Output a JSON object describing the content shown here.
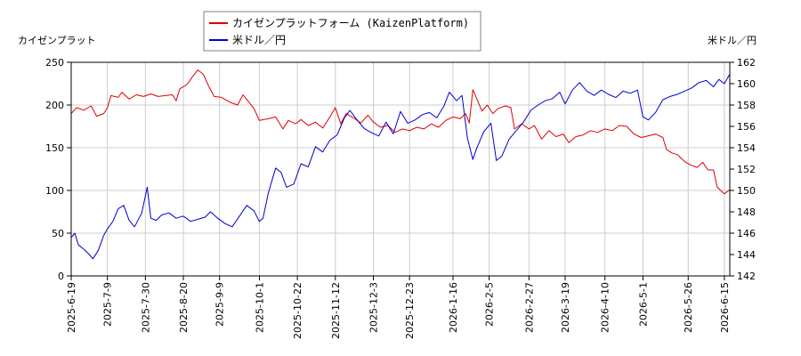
{
  "chart_data": {
    "type": "line",
    "left_axis_title": "カイゼンプラット",
    "right_axis_title": "米ドル／円",
    "legend": {
      "position": "top-center",
      "entries": [
        {
          "label": "カイゼンプラットフォーム (KaizenPlatform)",
          "color": "#dd0000"
        },
        {
          "label": "米ドル／円",
          "color": "#0000cc"
        }
      ]
    },
    "y_left": {
      "min": 0,
      "max": 250,
      "ticks": [
        0,
        50,
        100,
        150,
        200,
        250
      ],
      "tick_color": "#cc0000"
    },
    "y_right": {
      "min": 142,
      "max": 162,
      "ticks": [
        142,
        144,
        146,
        148,
        150,
        152,
        154,
        156,
        158,
        160,
        162
      ],
      "tick_color": "#0000cc"
    },
    "x_range": [
      "2025-06-19",
      "2026-06-18"
    ],
    "x_ticks": [
      "2025-6-19",
      "2025-7-9",
      "2025-7-30",
      "2025-8-20",
      "2025-9-9",
      "2025-10-1",
      "2025-10-22",
      "2025-11-12",
      "2025-12-3",
      "2025-12-23",
      "2026-1-16",
      "2026-2-5",
      "2026-2-27",
      "2026-3-19",
      "2026-4-10",
      "2026-5-1",
      "2026-5-26",
      "2026-6-15"
    ],
    "grid": true,
    "series": [
      {
        "name": "カイゼンプラットフォーム (KaizenPlatform)",
        "color": "#dd0000",
        "axis": "left",
        "points": [
          [
            "2025-06-19",
            190
          ],
          [
            "2025-06-22",
            197
          ],
          [
            "2025-06-26",
            194
          ],
          [
            "2025-06-30",
            199
          ],
          [
            "2025-07-03",
            187
          ],
          [
            "2025-07-07",
            190
          ],
          [
            "2025-07-09",
            197
          ],
          [
            "2025-07-11",
            211
          ],
          [
            "2025-07-15",
            209
          ],
          [
            "2025-07-17",
            215
          ],
          [
            "2025-07-21",
            207
          ],
          [
            "2025-07-25",
            212
          ],
          [
            "2025-07-29",
            210
          ],
          [
            "2025-08-02",
            213
          ],
          [
            "2025-08-06",
            210
          ],
          [
            "2025-08-10",
            211
          ],
          [
            "2025-08-14",
            212
          ],
          [
            "2025-08-16",
            205
          ],
          [
            "2025-08-18",
            219
          ],
          [
            "2025-08-22",
            224
          ],
          [
            "2025-08-25",
            233
          ],
          [
            "2025-08-28",
            241
          ],
          [
            "2025-08-31",
            236
          ],
          [
            "2025-09-03",
            222
          ],
          [
            "2025-09-06",
            210
          ],
          [
            "2025-09-10",
            209
          ],
          [
            "2025-09-15",
            203
          ],
          [
            "2025-09-19",
            200
          ],
          [
            "2025-09-22",
            212
          ],
          [
            "2025-09-25",
            204
          ],
          [
            "2025-09-28",
            196
          ],
          [
            "2025-10-01",
            182
          ],
          [
            "2025-10-06",
            184
          ],
          [
            "2025-10-10",
            186
          ],
          [
            "2025-10-14",
            172
          ],
          [
            "2025-10-17",
            182
          ],
          [
            "2025-10-21",
            178
          ],
          [
            "2025-10-24",
            183
          ],
          [
            "2025-10-28",
            176
          ],
          [
            "2025-11-01",
            180
          ],
          [
            "2025-11-05",
            173
          ],
          [
            "2025-11-09",
            186
          ],
          [
            "2025-11-12",
            197
          ],
          [
            "2025-11-15",
            178
          ],
          [
            "2025-11-18",
            190
          ],
          [
            "2025-11-22",
            185
          ],
          [
            "2025-11-26",
            179
          ],
          [
            "2025-11-30",
            188
          ],
          [
            "2025-12-03",
            180
          ],
          [
            "2025-12-07",
            174
          ],
          [
            "2025-12-11",
            176
          ],
          [
            "2025-12-15",
            168
          ],
          [
            "2025-12-19",
            172
          ],
          [
            "2025-12-23",
            170
          ],
          [
            "2025-12-27",
            174
          ],
          [
            "2025-12-31",
            172
          ],
          [
            "2026-01-04",
            178
          ],
          [
            "2026-01-08",
            174
          ],
          [
            "2026-01-12",
            182
          ],
          [
            "2026-01-16",
            186
          ],
          [
            "2026-01-20",
            184
          ],
          [
            "2026-01-23",
            190
          ],
          [
            "2026-01-25",
            179
          ],
          [
            "2026-01-27",
            218
          ],
          [
            "2026-01-29",
            208
          ],
          [
            "2026-02-01",
            193
          ],
          [
            "2026-02-04",
            200
          ],
          [
            "2026-02-07",
            190
          ],
          [
            "2026-02-10",
            196
          ],
          [
            "2026-02-14",
            199
          ],
          [
            "2026-02-17",
            197
          ],
          [
            "2026-02-19",
            172
          ],
          [
            "2026-02-23",
            178
          ],
          [
            "2026-02-27",
            172
          ],
          [
            "2026-03-02",
            176
          ],
          [
            "2026-03-06",
            160
          ],
          [
            "2026-03-10",
            170
          ],
          [
            "2026-03-14",
            163
          ],
          [
            "2026-03-18",
            166
          ],
          [
            "2026-03-21",
            156
          ],
          [
            "2026-03-25",
            163
          ],
          [
            "2026-03-29",
            165
          ],
          [
            "2026-04-02",
            170
          ],
          [
            "2026-04-06",
            168
          ],
          [
            "2026-04-10",
            172
          ],
          [
            "2026-04-14",
            170
          ],
          [
            "2026-04-18",
            176
          ],
          [
            "2026-04-22",
            175
          ],
          [
            "2026-04-26",
            166
          ],
          [
            "2026-04-30",
            162
          ],
          [
            "2026-05-04",
            164
          ],
          [
            "2026-05-08",
            166
          ],
          [
            "2026-05-12",
            162
          ],
          [
            "2026-05-14",
            148
          ],
          [
            "2026-05-17",
            144
          ],
          [
            "2026-05-20",
            142
          ],
          [
            "2026-05-24",
            134
          ],
          [
            "2026-05-27",
            130
          ],
          [
            "2026-05-31",
            127
          ],
          [
            "2026-06-03",
            133
          ],
          [
            "2026-06-06",
            124
          ],
          [
            "2026-06-09",
            124
          ],
          [
            "2026-06-11",
            104
          ],
          [
            "2026-06-13",
            100
          ],
          [
            "2026-06-15",
            96
          ],
          [
            "2026-06-18",
            101
          ]
        ]
      },
      {
        "name": "米ドル／円",
        "color": "#0000cc",
        "axis": "right",
        "points": [
          [
            "2025-06-19",
            145.6
          ],
          [
            "2025-06-21",
            146.0
          ],
          [
            "2025-06-23",
            144.9
          ],
          [
            "2025-06-26",
            144.5
          ],
          [
            "2025-06-29",
            144.0
          ],
          [
            "2025-07-01",
            143.6
          ],
          [
            "2025-07-04",
            144.4
          ],
          [
            "2025-07-07",
            145.8
          ],
          [
            "2025-07-09",
            146.4
          ],
          [
            "2025-07-12",
            147.1
          ],
          [
            "2025-07-15",
            148.3
          ],
          [
            "2025-07-18",
            148.6
          ],
          [
            "2025-07-21",
            147.2
          ],
          [
            "2025-07-24",
            146.6
          ],
          [
            "2025-07-28",
            147.9
          ],
          [
            "2025-07-31",
            150.3
          ],
          [
            "2025-08-02",
            147.4
          ],
          [
            "2025-08-05",
            147.2
          ],
          [
            "2025-08-08",
            147.7
          ],
          [
            "2025-08-12",
            147.9
          ],
          [
            "2025-08-16",
            147.4
          ],
          [
            "2025-08-20",
            147.6
          ],
          [
            "2025-08-24",
            147.1
          ],
          [
            "2025-08-28",
            147.3
          ],
          [
            "2025-09-01",
            147.5
          ],
          [
            "2025-09-04",
            148.0
          ],
          [
            "2025-09-08",
            147.4
          ],
          [
            "2025-09-12",
            146.9
          ],
          [
            "2025-09-16",
            146.6
          ],
          [
            "2025-09-20",
            147.6
          ],
          [
            "2025-09-24",
            148.6
          ],
          [
            "2025-09-28",
            148.1
          ],
          [
            "2025-10-01",
            147.1
          ],
          [
            "2025-10-03",
            147.4
          ],
          [
            "2025-10-06",
            149.8
          ],
          [
            "2025-10-10",
            152.1
          ],
          [
            "2025-10-13",
            151.7
          ],
          [
            "2025-10-16",
            150.3
          ],
          [
            "2025-10-20",
            150.6
          ],
          [
            "2025-10-24",
            152.5
          ],
          [
            "2025-10-28",
            152.2
          ],
          [
            "2025-11-01",
            154.1
          ],
          [
            "2025-11-05",
            153.6
          ],
          [
            "2025-11-09",
            154.7
          ],
          [
            "2025-11-13",
            155.2
          ],
          [
            "2025-11-17",
            156.8
          ],
          [
            "2025-11-20",
            157.5
          ],
          [
            "2025-11-24",
            156.6
          ],
          [
            "2025-11-28",
            155.8
          ],
          [
            "2025-12-02",
            155.4
          ],
          [
            "2025-12-06",
            155.1
          ],
          [
            "2025-12-10",
            156.4
          ],
          [
            "2025-12-14",
            155.3
          ],
          [
            "2025-12-18",
            157.4
          ],
          [
            "2025-12-22",
            156.3
          ],
          [
            "2025-12-26",
            156.6
          ],
          [
            "2025-12-30",
            157.1
          ],
          [
            "2026-01-03",
            157.3
          ],
          [
            "2026-01-07",
            156.8
          ],
          [
            "2026-01-11",
            157.9
          ],
          [
            "2026-01-14",
            159.2
          ],
          [
            "2026-01-18",
            158.4
          ],
          [
            "2026-01-21",
            158.9
          ],
          [
            "2026-01-24",
            154.9
          ],
          [
            "2026-01-27",
            152.9
          ],
          [
            "2026-01-29",
            153.9
          ],
          [
            "2026-02-02",
            155.5
          ],
          [
            "2026-02-06",
            156.3
          ],
          [
            "2026-02-09",
            152.8
          ],
          [
            "2026-02-12",
            153.2
          ],
          [
            "2026-02-16",
            154.8
          ],
          [
            "2026-02-20",
            155.6
          ],
          [
            "2026-02-24",
            156.4
          ],
          [
            "2026-02-28",
            157.5
          ],
          [
            "2026-03-04",
            158.0
          ],
          [
            "2026-03-08",
            158.4
          ],
          [
            "2026-03-12",
            158.6
          ],
          [
            "2026-03-16",
            159.2
          ],
          [
            "2026-03-19",
            158.1
          ],
          [
            "2026-03-23",
            159.4
          ],
          [
            "2026-03-27",
            160.1
          ],
          [
            "2026-03-31",
            159.3
          ],
          [
            "2026-04-04",
            158.9
          ],
          [
            "2026-04-08",
            159.4
          ],
          [
            "2026-04-12",
            159.0
          ],
          [
            "2026-04-16",
            158.7
          ],
          [
            "2026-04-20",
            159.3
          ],
          [
            "2026-04-24",
            159.1
          ],
          [
            "2026-04-28",
            159.4
          ],
          [
            "2026-05-01",
            156.9
          ],
          [
            "2026-05-04",
            156.6
          ],
          [
            "2026-05-08",
            157.3
          ],
          [
            "2026-05-12",
            158.5
          ],
          [
            "2026-05-16",
            158.8
          ],
          [
            "2026-05-20",
            159.0
          ],
          [
            "2026-05-24",
            159.3
          ],
          [
            "2026-05-28",
            159.6
          ],
          [
            "2026-06-01",
            160.1
          ],
          [
            "2026-06-05",
            160.3
          ],
          [
            "2026-06-09",
            159.7
          ],
          [
            "2026-06-12",
            160.4
          ],
          [
            "2026-06-15",
            160.0
          ],
          [
            "2026-06-18",
            160.9
          ]
        ]
      }
    ]
  }
}
